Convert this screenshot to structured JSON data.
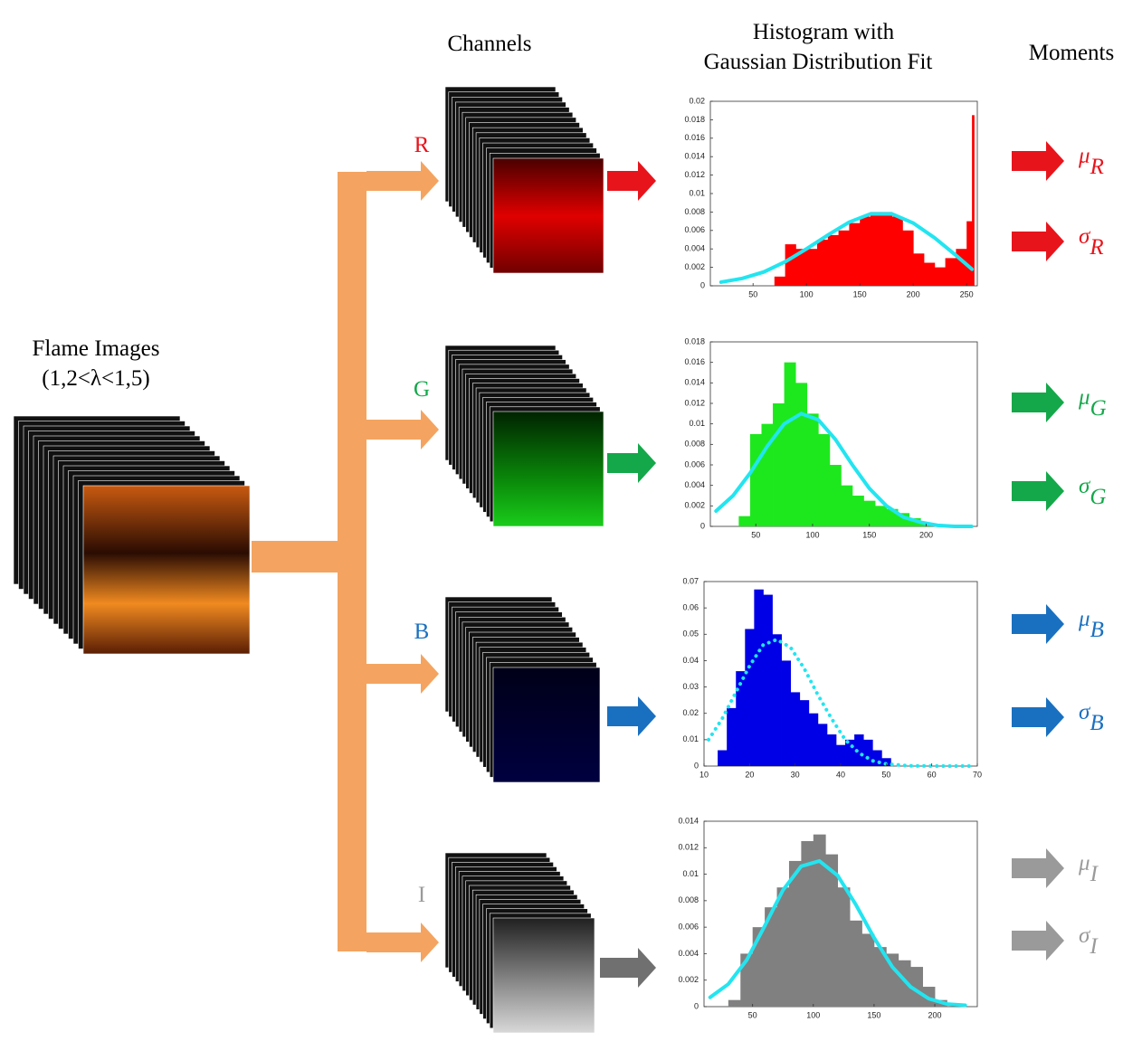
{
  "header": {
    "channels": "Channels",
    "histogram": [
      "Histogram with",
      "Gaussian Distribution Fit"
    ],
    "moments": "Moments"
  },
  "input": {
    "title": "Flame Images",
    "range": "(1,2<λ<1,5)"
  },
  "channels": [
    {
      "label": "R",
      "color": "#e8141c",
      "moments": [
        {
          "symbol": "μ",
          "sub": "R"
        },
        {
          "symbol": "σ",
          "sub": "R"
        }
      ]
    },
    {
      "label": "G",
      "color": "#14a84a",
      "moments": [
        {
          "symbol": "μ",
          "sub": "G"
        },
        {
          "symbol": "σ",
          "sub": "G"
        }
      ]
    },
    {
      "label": "B",
      "color": "#1a70c0",
      "moments": [
        {
          "symbol": "μ",
          "sub": "B"
        },
        {
          "symbol": "σ",
          "sub": "B"
        }
      ]
    },
    {
      "label": "I",
      "color": "#9a9a9a",
      "moments": [
        {
          "symbol": "μ",
          "sub": "I"
        },
        {
          "symbol": "σ",
          "sub": "I"
        }
      ]
    }
  ],
  "chart_data": [
    {
      "type": "histogram",
      "color": "#ff0000",
      "bins": [
        70,
        80,
        90,
        100,
        110,
        120,
        130,
        140,
        150,
        160,
        170,
        180,
        190,
        200,
        210,
        220,
        230,
        240,
        250,
        255,
        257
      ],
      "counts": [
        0.001,
        0.0045,
        0.004,
        0.004,
        0.005,
        0.0055,
        0.006,
        0.0068,
        0.0075,
        0.008,
        0.008,
        0.0075,
        0.006,
        0.0035,
        0.0025,
        0.002,
        0.003,
        0.004,
        0.007,
        0.0185
      ],
      "fit": {
        "color": "#22e5f0",
        "style": "solid",
        "x": [
          20,
          40,
          60,
          80,
          100,
          120,
          140,
          160,
          180,
          200,
          220,
          240,
          255
        ],
        "values": [
          0.0004,
          0.0008,
          0.0015,
          0.0026,
          0.004,
          0.0055,
          0.0069,
          0.0078,
          0.0078,
          0.0068,
          0.0052,
          0.0033,
          0.0018
        ]
      },
      "xlim": [
        10,
        260
      ],
      "xticks": [
        50,
        100,
        150,
        200,
        250
      ],
      "ylim": [
        0,
        0.02
      ],
      "yticks": [
        0,
        0.002,
        0.004,
        0.006,
        0.008,
        0.01,
        0.012,
        0.014,
        0.016,
        0.018,
        0.02
      ]
    },
    {
      "type": "histogram",
      "color": "#1de81d",
      "bins": [
        35,
        45,
        55,
        65,
        75,
        85,
        95,
        105,
        115,
        125,
        135,
        145,
        155,
        165,
        175,
        185,
        195,
        205
      ],
      "counts": [
        0.001,
        0.009,
        0.01,
        0.012,
        0.016,
        0.014,
        0.011,
        0.009,
        0.006,
        0.004,
        0.003,
        0.0025,
        0.002,
        0.0017,
        0.0013,
        0.0008,
        0.0003
      ],
      "fit": {
        "color": "#22e5f0",
        "style": "solid",
        "x": [
          15,
          30,
          45,
          60,
          75,
          90,
          105,
          120,
          135,
          150,
          165,
          180,
          195,
          210,
          225,
          240
        ],
        "values": [
          0.0015,
          0.003,
          0.0052,
          0.0078,
          0.01,
          0.011,
          0.0104,
          0.0085,
          0.006,
          0.0037,
          0.002,
          0.0009,
          0.0004,
          0.0001,
          0,
          0
        ]
      },
      "xlim": [
        10,
        245
      ],
      "xticks": [
        50,
        100,
        150,
        200
      ],
      "ylim": [
        0,
        0.018
      ],
      "yticks": [
        0,
        0.002,
        0.004,
        0.006,
        0.008,
        0.01,
        0.012,
        0.014,
        0.016,
        0.018
      ]
    },
    {
      "type": "histogram",
      "color": "#0000e6",
      "bins": [
        13,
        15,
        17,
        19,
        21,
        23,
        25,
        27,
        29,
        31,
        33,
        35,
        37,
        39,
        41,
        43,
        45,
        47,
        49,
        51
      ],
      "counts": [
        0.006,
        0.022,
        0.036,
        0.052,
        0.067,
        0.065,
        0.05,
        0.04,
        0.028,
        0.025,
        0.02,
        0.016,
        0.012,
        0.008,
        0.01,
        0.012,
        0.01,
        0.006,
        0.003
      ],
      "fit": {
        "color": "#22e5f0",
        "style": "dotted",
        "x": [
          11,
          14,
          17,
          20,
          23,
          26,
          29,
          32,
          35,
          38,
          41,
          44,
          47,
          50,
          55,
          60,
          69
        ],
        "values": [
          0.01,
          0.018,
          0.028,
          0.038,
          0.046,
          0.048,
          0.045,
          0.037,
          0.027,
          0.018,
          0.01,
          0.005,
          0.002,
          0.0008,
          0.0001,
          0,
          0
        ]
      },
      "xlim": [
        10,
        70
      ],
      "xticks": [
        10,
        20,
        30,
        40,
        50,
        60,
        70
      ],
      "ylim": [
        0,
        0.07
      ],
      "yticks": [
        0,
        0.01,
        0.02,
        0.03,
        0.04,
        0.05,
        0.06,
        0.07
      ]
    },
    {
      "type": "histogram",
      "color": "#808080",
      "bins": [
        30,
        40,
        50,
        60,
        70,
        80,
        90,
        100,
        110,
        120,
        130,
        140,
        150,
        160,
        170,
        180,
        190,
        200,
        210
      ],
      "counts": [
        0.0005,
        0.004,
        0.006,
        0.0075,
        0.009,
        0.011,
        0.0125,
        0.013,
        0.0115,
        0.009,
        0.0065,
        0.0055,
        0.0045,
        0.004,
        0.0035,
        0.003,
        0.0015,
        0.0005
      ],
      "fit": {
        "color": "#22e5f0",
        "style": "solid",
        "x": [
          15,
          30,
          45,
          60,
          75,
          90,
          105,
          120,
          135,
          150,
          165,
          180,
          195,
          210,
          225
        ],
        "values": [
          0.0007,
          0.0017,
          0.0035,
          0.0061,
          0.0088,
          0.0106,
          0.011,
          0.0099,
          0.0077,
          0.0052,
          0.003,
          0.0015,
          0.0006,
          0.0002,
          0.0001
        ]
      },
      "xlim": [
        10,
        235
      ],
      "xticks": [
        50,
        100,
        150,
        200
      ],
      "ylim": [
        0,
        0.014
      ],
      "yticks": [
        0,
        0.002,
        0.004,
        0.006,
        0.008,
        0.01,
        0.012,
        0.014
      ]
    }
  ]
}
